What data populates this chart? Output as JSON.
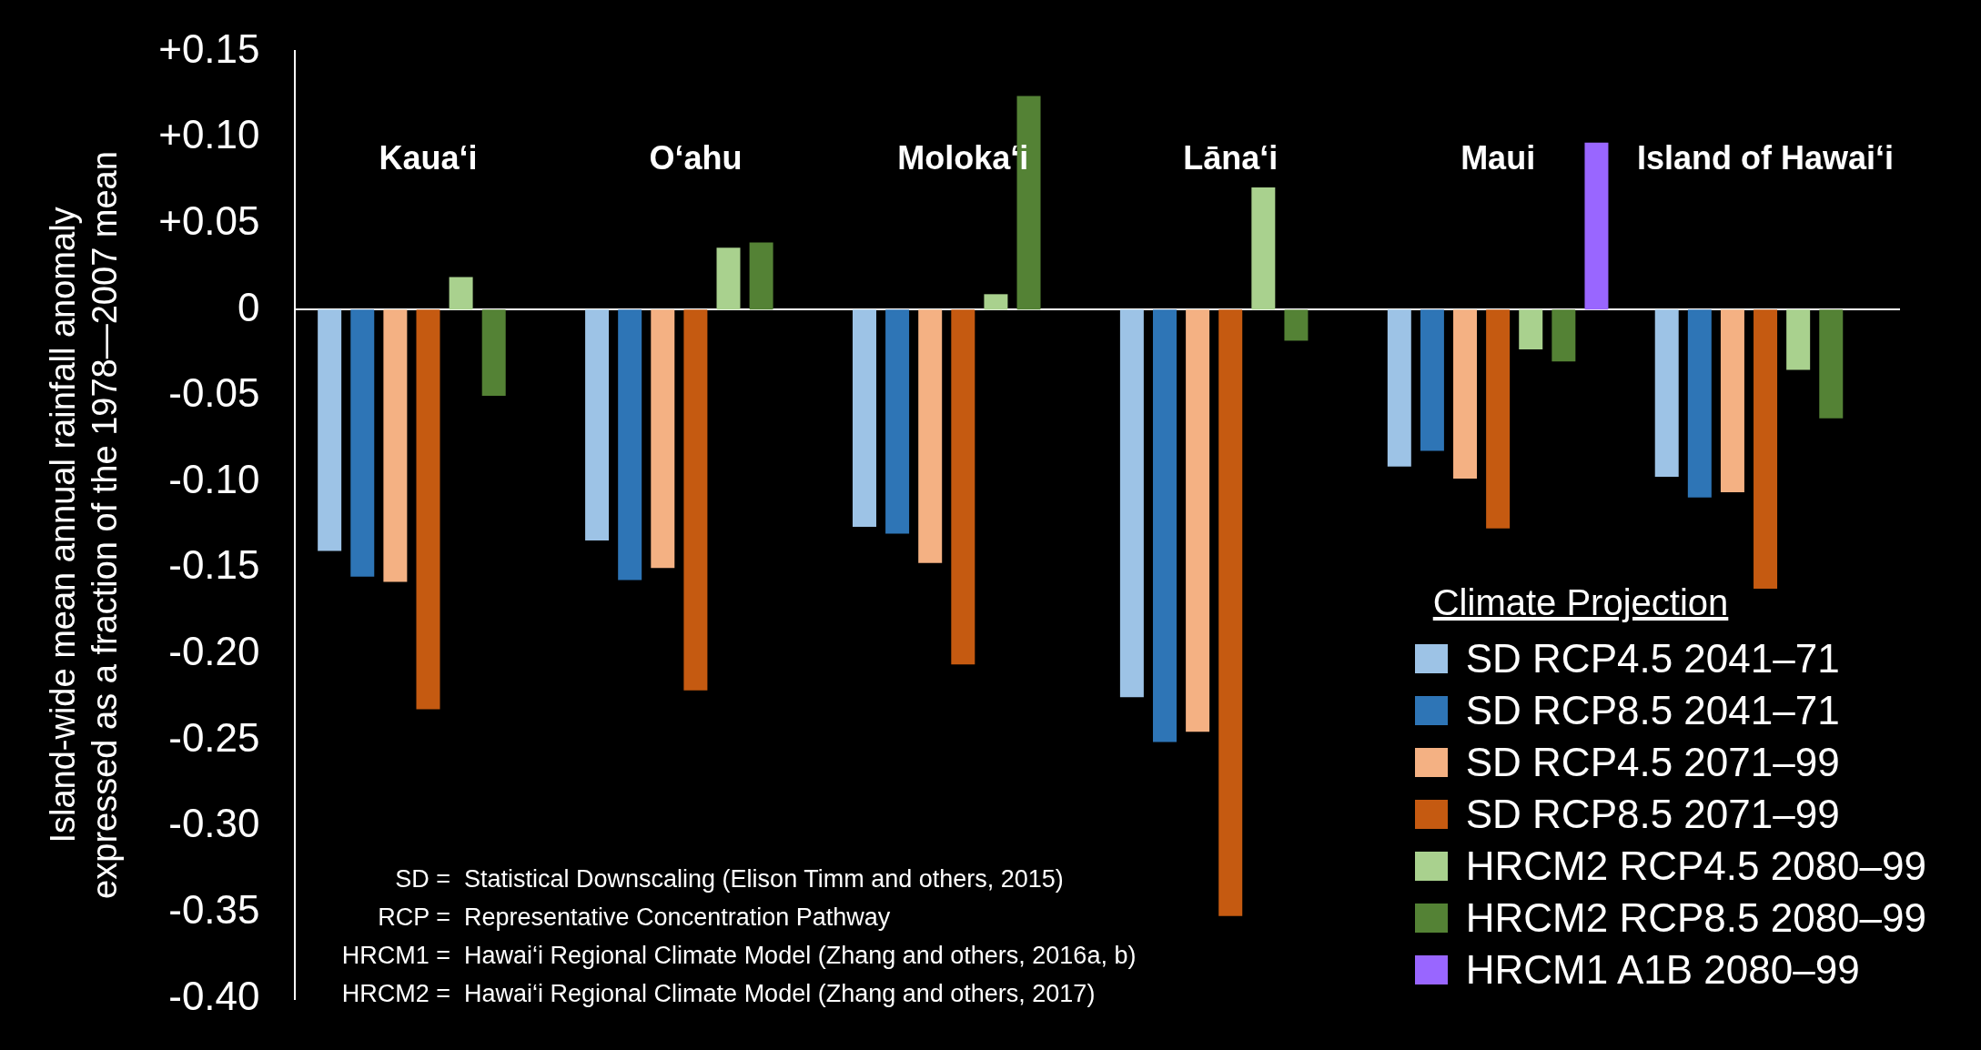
{
  "chart_data": {
    "type": "bar",
    "ylabel": "Island-wide mean annual rainfall anomaly\nexpressed as a fraction of the 1978—2007 mean",
    "legend_title": "Climate Projection",
    "categories": [
      "Kaua‘i",
      "O‘ahu",
      "Moloka‘i",
      "Lāna‘i",
      "Maui",
      "Island of Hawai‘i"
    ],
    "series": [
      {
        "name": "SD RCP4.5 2041–71",
        "color": "#9dc3e6",
        "values": [
          -0.14,
          -0.134,
          -0.126,
          -0.225,
          -0.091,
          -0.097
        ]
      },
      {
        "name": "SD RCP8.5 2041–71",
        "color": "#2e75b6",
        "values": [
          -0.155,
          -0.157,
          -0.13,
          -0.251,
          -0.082,
          -0.109
        ]
      },
      {
        "name": "SD RCP4.5 2071–99",
        "color": "#f4b183",
        "values": [
          -0.158,
          -0.15,
          -0.147,
          -0.245,
          -0.098,
          -0.106
        ]
      },
      {
        "name": "SD RCP8.5 2071–99",
        "color": "#c55a11",
        "values": [
          -0.232,
          -0.221,
          -0.206,
          -0.352,
          -0.127,
          -0.162
        ]
      },
      {
        "name": "HRCM2 RCP4.5 2080–99",
        "color": "#a9d18e",
        "values": [
          0.019,
          0.036,
          0.009,
          0.071,
          -0.023,
          -0.035
        ]
      },
      {
        "name": "HRCM2 RCP8.5 2080–99",
        "color": "#548235",
        "values": [
          -0.05,
          0.039,
          0.124,
          -0.018,
          -0.03,
          -0.063
        ]
      },
      {
        "name": "HRCM1 A1B 2080–99",
        "color": "#9966ff",
        "values": [
          null,
          null,
          null,
          null,
          0.097,
          null
        ]
      }
    ],
    "ylim": [
      -0.4,
      0.15
    ],
    "yticks": [
      {
        "value": 0.15,
        "label": "+0.15"
      },
      {
        "value": 0.1,
        "label": "+0.10"
      },
      {
        "value": 0.05,
        "label": "+0.05"
      },
      0,
      -0.05,
      {
        "value": -0.1,
        "label": "-0.10"
      },
      -0.15,
      {
        "value": -0.2,
        "label": "-0.20"
      },
      -0.25,
      {
        "value": -0.3,
        "label": "-0.30"
      },
      -0.35,
      {
        "value": -0.4,
        "label": "-0.40"
      }
    ],
    "legend": "bottom right",
    "annotations": [
      "SD =  Statistical Downscaling (Elison Timm and others, 2015)",
      "RCP =  Representative Concentration Pathway",
      "HRCM1 =  Hawai‘i Regional Climate Model (Zhang and others, 2016a, b)",
      "HRCM2 =  Hawai‘i Regional Climate Model (Zhang and others, 2017)"
    ]
  }
}
